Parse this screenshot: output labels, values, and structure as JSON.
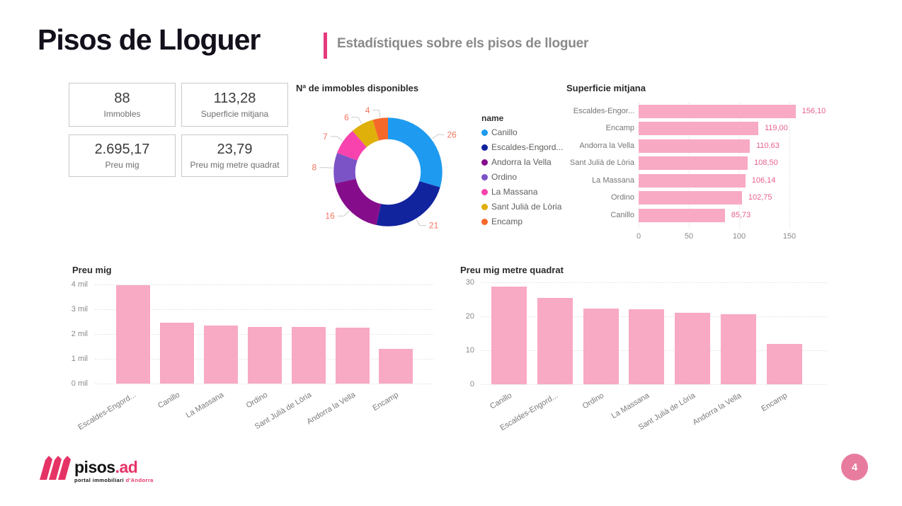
{
  "header": {
    "title": "Pisos de Lloguer",
    "subtitle": "Estadístiques sobre els pisos de lloguer"
  },
  "kpis": [
    {
      "value": "88",
      "label": "Immobles"
    },
    {
      "value": "113,28",
      "label": "Superficie mitjana"
    },
    {
      "value": "2.695,17",
      "label": "Preu mig"
    },
    {
      "value": "23,79",
      "label": "Preu mig metre quadrat"
    }
  ],
  "colors": {
    "accent_pink": "#E6397E",
    "bar_fill": "#F8A9C4",
    "bar_value_label": "#E8608E",
    "donut_data_label": "#F4755F",
    "leader_line": "#cccbcb",
    "badge": "#E87C9F",
    "logo_pink": "#E63366"
  },
  "chart_data": [
    {
      "type": "pie",
      "variant": "donut",
      "title": "Nª de immobles disponibles",
      "legend_title": "name",
      "legend_position": "right",
      "categories": [
        "Canillo",
        "Escaldes-Engord...",
        "Andorra la Vella",
        "Ordino",
        "La Massana",
        "Sant Julià de Lòria",
        "Encamp"
      ],
      "values": [
        26,
        21,
        16,
        8,
        7,
        6,
        4
      ],
      "slice_colors": [
        "#1E9BF0",
        "#12239E",
        "#850D8C",
        "#7C52C7",
        "#F843AE",
        "#DFAF0A",
        "#F6682A"
      ],
      "data_label_color": "#F4755F"
    },
    {
      "type": "bar",
      "orientation": "horizontal",
      "title": "Superficie mitjana",
      "categories": [
        "Escaldes-Engor...",
        "Encamp",
        "Andorra la Vella",
        "Sant Julià de Lòria",
        "La Massana",
        "Ordino",
        "Canillo"
      ],
      "values": [
        156.1,
        119.0,
        110.63,
        108.5,
        106.14,
        102.75,
        85.73
      ],
      "data_labels": [
        "156,10",
        "119,00",
        "110,63",
        "108,50",
        "106,14",
        "102,75",
        "85,73"
      ],
      "xticks": [
        "0",
        "50",
        "100",
        "150"
      ],
      "xtick_values": [
        0,
        50,
        100,
        150
      ],
      "xlim": [
        0,
        180
      ],
      "bar_color": "#F8A9C4",
      "label_color": "#E8608E",
      "grid": true
    },
    {
      "type": "bar",
      "orientation": "vertical",
      "title": "Preu mig",
      "categories": [
        "Escaldes-Engord...",
        "Canillo",
        "La Massana",
        "Ordino",
        "Sant Julià de Lòria",
        "Andorra la Vella",
        "Encamp"
      ],
      "values": [
        3960,
        2470,
        2350,
        2295,
        2280,
        2270,
        1395
      ],
      "yticks": [
        "4 mil",
        "3 mil",
        "2 mil",
        "1 mil",
        "0 mil"
      ],
      "ytick_values": [
        4000,
        3000,
        2000,
        1000,
        0
      ],
      "ylim": [
        0,
        4400
      ],
      "bar_color": "#F8A9C4",
      "grid": true
    },
    {
      "type": "bar",
      "orientation": "vertical",
      "title": "Preu mig metre quadrat",
      "categories": [
        "Canillo",
        "Escaldes-Engord...",
        "Ordino",
        "La Massana",
        "Sant Julià de Lòria",
        "Andorra la Vella",
        "Encamp"
      ],
      "values": [
        28.8,
        25.4,
        22.2,
        22.1,
        21.0,
        20.7,
        11.8
      ],
      "yticks": [
        "30",
        "20",
        "10",
        "0"
      ],
      "ytick_values": [
        30,
        20,
        10,
        0
      ],
      "ylim": [
        0,
        31
      ],
      "bar_color": "#F8A9C4",
      "grid": true
    }
  ],
  "footer": {
    "logo_text": "pisos",
    "logo_suffix": ".ad",
    "tagline": "portal immobiliari ",
    "tagline_accent": "d'Andorra",
    "page_number": "4"
  }
}
